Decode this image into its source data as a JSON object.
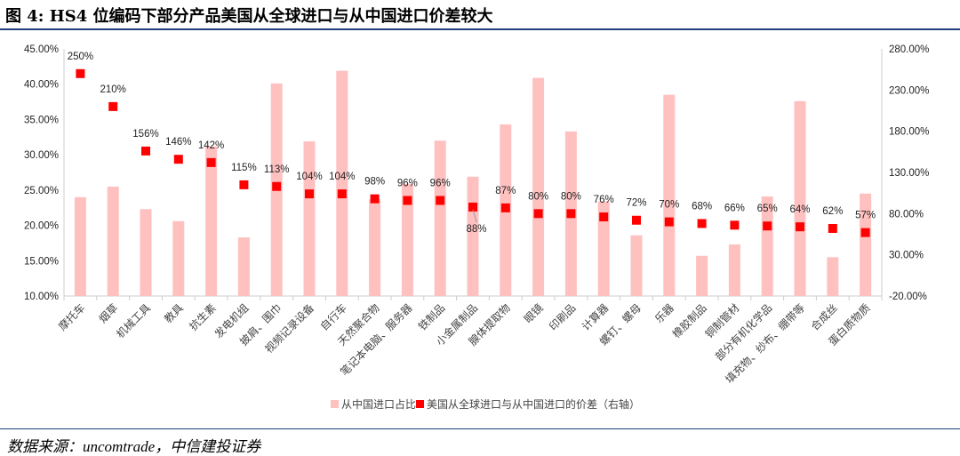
{
  "title": "图 4: HS4 位编码下部分产品美国从全球进口与从中国进口价差较大",
  "source": "数据来源：uncomtrade，中信建投证券",
  "chart_data": {
    "type": "bar+scatter",
    "categories": [
      "摩托车",
      "烟草",
      "机械工具",
      "教具",
      "抗生素",
      "发电机组",
      "披肩、围巾",
      "视频记录设备",
      "自行车",
      "天然聚合物",
      "笔记本电脑、服务器",
      "铁制品",
      "小金属制品",
      "腺体提取物",
      "眼镜",
      "印刷品",
      "计算器",
      "螺钉、螺母",
      "乐器",
      "橡胶制品",
      "铜制管材",
      "部分有机化学品",
      "填充物、纱布、绷带等",
      "合成丝",
      "蛋白质物质"
    ],
    "series": [
      {
        "name": "从中国进口占比",
        "type": "bar",
        "axis": "left",
        "color": "#ffc0c0",
        "values": [
          24.0,
          25.5,
          22.3,
          20.6,
          31.2,
          18.3,
          40.1,
          31.9,
          41.9,
          23.7,
          25.9,
          32.0,
          26.9,
          34.3,
          40.9,
          33.3,
          23.4,
          18.6,
          38.5,
          15.7,
          17.3,
          24.1,
          37.6,
          15.5,
          24.5
        ]
      },
      {
        "name": "美国从全球进口与从中国进口的价差（右轴）",
        "type": "scatter",
        "axis": "right",
        "color": "#ff0000",
        "values": [
          250,
          210,
          156,
          146,
          142,
          115,
          113,
          104,
          104,
          98,
          96,
          96,
          88,
          87,
          80,
          80,
          76,
          72,
          70,
          68,
          66,
          65,
          64,
          62,
          57
        ]
      }
    ],
    "left_axis": {
      "ylim": [
        10,
        45
      ],
      "ticks": [
        "10.00%",
        "15.00%",
        "20.00%",
        "25.00%",
        "30.00%",
        "35.00%",
        "40.00%",
        "45.00%"
      ]
    },
    "right_axis": {
      "ylim": [
        -20,
        280
      ],
      "ticks": [
        "-20.00%",
        "30.00%",
        "80.00%",
        "130.00%",
        "180.00%",
        "230.00%",
        "280.00%"
      ]
    },
    "legend_position": "bottom"
  }
}
